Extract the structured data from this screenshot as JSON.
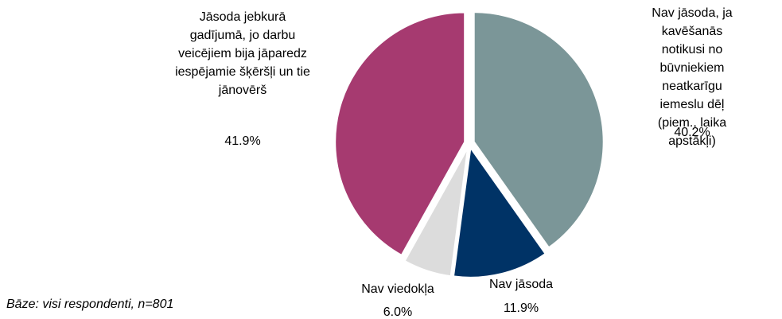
{
  "chart_data": {
    "type": "pie",
    "categories": [
      "Nav jāsoda, ja\nkavēšanās notikusi no\nbūvniekiem neatkarīgu\niemeslu dēļ (piem., laika\napstākļi)",
      "Nav jāsoda",
      "Nav viedokļa",
      "Jāsoda jebkurā\ngadījumā, jo darbu\nveicējiem bija jāparedz\niespējamie šķēršļi un tie\njānovērš"
    ],
    "values": [
      40.2,
      11.9,
      6.0,
      41.9
    ],
    "value_labels": [
      "40.2%",
      "11.9%",
      "6.0%",
      "41.9%"
    ],
    "colors": [
      "#7b9698",
      "#003366",
      "#dcdcdc",
      "#a63a70"
    ],
    "note": "Bāze: visi respondenti, n=801"
  }
}
